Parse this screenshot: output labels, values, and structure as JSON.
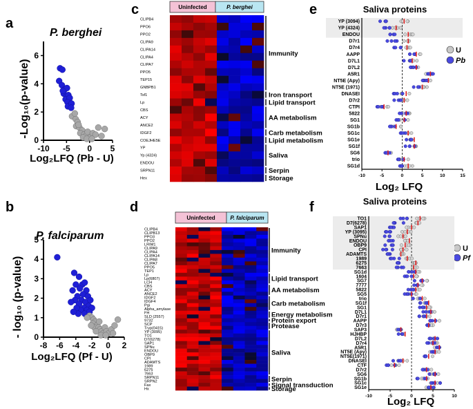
{
  "panels": {
    "a": {
      "label": "a",
      "title": "P. berghei",
      "ylabel": "-Log₁₀(p-value)",
      "xlabel": "Log₂LFQ (Pb - U)"
    },
    "b": {
      "label": "b",
      "title": "P. falciparum",
      "ylabel": "- log₁₀ (p-value)",
      "xlabel": "Log₂LFQ (Pf - U)"
    },
    "c": {
      "label": "c",
      "header_left": "Uninfected",
      "header_right": "P. berghei"
    },
    "d": {
      "label": "d",
      "header_left": "Uninfected",
      "header_right": "P. falciparum"
    },
    "e": {
      "label": "e",
      "title": "Saliva proteins",
      "xlabel": "Log₂ LFQ",
      "legend_u": "U",
      "legend_p": "Pb"
    },
    "f": {
      "label": "f",
      "title": "Saliva proteins",
      "xlabel": "Log₂ LFQ",
      "legend_u": "U",
      "legend_p": "Pf"
    }
  },
  "colors": {
    "blue_dot": "#1f1fd6",
    "gray_dot": "#a8a8a8",
    "red_marker": "#e02020",
    "heat_high": "#ff0000",
    "heat_low": "#0000ff",
    "header_pink": "#f4c2d6",
    "header_blue": "#b9e6f2",
    "highlight_bg": "#ececec"
  },
  "chart_data": [
    {
      "id": "a",
      "type": "scatter",
      "title": "P. berghei",
      "xlabel": "Log2LFQ (Pb - U)",
      "ylabel": "-Log10(p-value)",
      "xlim": [
        -10,
        5
      ],
      "ylim": [
        0,
        7
      ],
      "xticks": [
        "-10",
        "-5",
        "0",
        "5"
      ],
      "yticks": [
        "0",
        "2",
        "4",
        "6"
      ],
      "series": [
        {
          "name": "significant",
          "color": "blue",
          "points": [
            [
              -6.4,
              5.1
            ],
            [
              -5.9,
              5.0
            ],
            [
              -6.6,
              4.2
            ],
            [
              -6.0,
              3.9
            ],
            [
              -5.4,
              3.6
            ],
            [
              -4.9,
              3.7
            ],
            [
              -5.6,
              3.3
            ],
            [
              -5.0,
              3.1
            ],
            [
              -4.6,
              3.2
            ],
            [
              -5.2,
              2.9
            ],
            [
              -4.5,
              2.8
            ],
            [
              -4.3,
              3.0
            ],
            [
              -5.8,
              3.5
            ],
            [
              -4.8,
              2.7
            ],
            [
              -4.1,
              2.5
            ],
            [
              -4.7,
              2.4
            ],
            [
              -3.9,
              2.6
            ],
            [
              -4.0,
              2.3
            ]
          ]
        },
        {
          "name": "not significant",
          "color": "gray",
          "points": [
            [
              -3.8,
              1.7
            ],
            [
              -3.0,
              1.5
            ],
            [
              -2.6,
              1.3
            ],
            [
              -2.9,
              1.0
            ],
            [
              -2.2,
              0.9
            ],
            [
              -1.6,
              0.7
            ],
            [
              -2.0,
              0.5
            ],
            [
              -1.2,
              0.4
            ],
            [
              -0.8,
              0.3
            ],
            [
              -0.4,
              0.6
            ],
            [
              0.2,
              0.2
            ],
            [
              0.7,
              0.5
            ],
            [
              1.3,
              0.4
            ],
            [
              1.9,
              0.9
            ],
            [
              2.6,
              0.3
            ],
            [
              3.3,
              0.8
            ],
            [
              -1.4,
              0.2
            ],
            [
              -0.6,
              0.1
            ],
            [
              0.5,
              0.1
            ],
            [
              -2.4,
              1.1
            ],
            [
              -3.2,
              1.9
            ]
          ]
        }
      ]
    },
    {
      "id": "b",
      "type": "scatter",
      "title": "P. falciparum",
      "xlabel": "Log2LFQ (Pf - U)",
      "ylabel": "- log10 (p-value)",
      "xlim": [
        -8,
        2
      ],
      "ylim": [
        0,
        5
      ],
      "xticks": [
        "-8",
        "-6",
        "-4",
        "-2",
        "0",
        "2"
      ],
      "yticks": [
        "0",
        "1",
        "2",
        "3",
        "4",
        "5"
      ],
      "series": [
        {
          "name": "significant",
          "color": "blue",
          "points": [
            [
              -6.3,
              4.1
            ],
            [
              -4.2,
              3.3
            ],
            [
              -3.6,
              3.1
            ],
            [
              -4.0,
              2.7
            ],
            [
              -3.2,
              2.7
            ],
            [
              -2.9,
              2.8
            ],
            [
              -3.5,
              2.5
            ],
            [
              -4.4,
              2.4
            ],
            [
              -2.7,
              2.4
            ],
            [
              -3.1,
              2.2
            ],
            [
              -3.8,
              2.1
            ],
            [
              -2.5,
              2.1
            ],
            [
              -4.1,
              1.9
            ],
            [
              -3.3,
              1.9
            ],
            [
              -2.8,
              1.8
            ],
            [
              -2.2,
              1.9
            ],
            [
              -3.6,
              1.7
            ],
            [
              -4.6,
              1.8
            ],
            [
              -2.4,
              1.6
            ],
            [
              -3.0,
              1.5
            ],
            [
              -3.4,
              1.4
            ],
            [
              -2.6,
              1.4
            ],
            [
              -3.9,
              1.5
            ],
            [
              -2.0,
              1.5
            ],
            [
              -3.7,
              1.2
            ],
            [
              -2.9,
              1.2
            ],
            [
              -4.3,
              1.3
            ],
            [
              -2.3,
              1.3
            ]
          ]
        },
        {
          "name": "not significant",
          "color": "gray",
          "points": [
            [
              -2.3,
              1.1
            ],
            [
              -2.0,
              1.0
            ],
            [
              -1.8,
              0.9
            ],
            [
              -2.6,
              1.0
            ],
            [
              -1.6,
              0.8
            ],
            [
              -1.9,
              0.7
            ],
            [
              -1.4,
              0.6
            ],
            [
              -1.7,
              0.5
            ],
            [
              -1.2,
              0.5
            ],
            [
              -1.0,
              0.4
            ],
            [
              -1.5,
              0.3
            ],
            [
              -0.8,
              0.3
            ],
            [
              -0.6,
              0.2
            ],
            [
              -0.4,
              0.5
            ],
            [
              -0.2,
              0.3
            ],
            [
              0.1,
              0.2
            ],
            [
              0.4,
              0.4
            ],
            [
              0.8,
              0.6
            ],
            [
              1.2,
              0.9
            ],
            [
              -1.1,
              0.8
            ],
            [
              -0.9,
              0.1
            ],
            [
              -2.1,
              0.6
            ],
            [
              -0.3,
              0.1
            ],
            [
              0.6,
              0.2
            ]
          ]
        }
      ]
    },
    {
      "id": "c",
      "type": "heatmap",
      "columns": [
        "Uninfected",
        "Uninfected",
        "Uninfected",
        "Uninfected",
        "P. berghei",
        "P. berghei",
        "P. berghei",
        "P. berghei"
      ],
      "rows": [
        "CLIPB4",
        "PPO6",
        "PPO2",
        "CLIPA9",
        "CLIPA14",
        "CLIPA4",
        "CLIPA7",
        "PPO5",
        "TEP15",
        "GNBPB1",
        "Tsf1",
        "Lp",
        "CBS",
        "ACY",
        "ANCE2",
        "IDGF2",
        "COEJHE5E",
        "YP",
        "Yp (4324)",
        "ENDOU",
        "SRPN11",
        "Hex"
      ],
      "categories": [
        {
          "name": "Immunity",
          "first_row": 0,
          "last_row": 9
        },
        {
          "name": "Iron transport",
          "first_row": 10,
          "last_row": 10
        },
        {
          "name": "Lipid transport",
          "first_row": 11,
          "last_row": 11
        },
        {
          "name": "AA metabolism",
          "first_row": 12,
          "last_row": 14
        },
        {
          "name": "Carb metabolism",
          "first_row": 15,
          "last_row": 15
        },
        {
          "name": "Lipid metabolism",
          "first_row": 16,
          "last_row": 16
        },
        {
          "name": "Saliva",
          "first_row": 17,
          "last_row": 19
        },
        {
          "name": "Serpin",
          "first_row": 20,
          "last_row": 20
        },
        {
          "name": "Storage",
          "first_row": 21,
          "last_row": 21
        }
      ],
      "scale": "relative abundance: red = high, black = mid, blue = low"
    },
    {
      "id": "d",
      "type": "heatmap",
      "columns": [
        "Uninfected",
        "Uninfected",
        "Uninfected",
        "Uninfected",
        "P. falciparum",
        "P. falciparum",
        "P. falciparum",
        "P. falciparum"
      ],
      "rows": [
        "CLIPB4",
        "CLIPB13",
        "PPO3",
        "PPO2",
        "LRIM1",
        "CLIPA9",
        "CLIPA4",
        "CLIPA14",
        "CLIPA8",
        "CLIPA7",
        "PPO5",
        "TEP1",
        "Lp",
        "Lp(6807)",
        "LCH",
        "CBS",
        "ACY",
        "ANCE2",
        "IDGF2",
        "IDGF4",
        "Pgi",
        "Alpha_amylase",
        "FH",
        "SLD (2557)",
        "9732",
        "SCP",
        "Tryp(0415)",
        "YP (3095)",
        "TO1",
        "D7(6278)",
        "SAP1",
        "SPNu",
        "ENDOU",
        "OBP9",
        "CPI",
        "ADAMTS",
        "1989",
        "6275",
        "7663",
        "SRPN11",
        "SRPN2",
        "Fax",
        "Hx"
      ],
      "categories": [
        {
          "name": "Immunity",
          "first_row": 0,
          "last_row": 11
        },
        {
          "name": "Lipid transport",
          "first_row": 12,
          "last_row": 14
        },
        {
          "name": "AA metabolism",
          "first_row": 15,
          "last_row": 17
        },
        {
          "name": "Carb metabolism",
          "first_row": 18,
          "last_row": 21
        },
        {
          "name": "Energy metabolism",
          "first_row": 22,
          "last_row": 23
        },
        {
          "name": "Protein export",
          "first_row": 24,
          "last_row": 24
        },
        {
          "name": "Protease",
          "first_row": 25,
          "last_row": 26
        },
        {
          "name": "Saliva",
          "first_row": 27,
          "last_row": 38
        },
        {
          "name": "Serpin",
          "first_row": 39,
          "last_row": 40
        },
        {
          "name": "Signal transduction",
          "first_row": 41,
          "last_row": 41
        },
        {
          "name": "Storage",
          "first_row": 42,
          "last_row": 42
        }
      ],
      "scale": "relative abundance: red = high, black = mid, blue = low"
    },
    {
      "id": "e",
      "type": "scatter",
      "title": "Saliva proteins",
      "xlabel": "Log2 LFQ",
      "xlim": [
        -10,
        15
      ],
      "xticks": [
        "-10",
        "-5",
        "0",
        "5",
        "10",
        "15"
      ],
      "legend": [
        "U",
        "Pb"
      ],
      "highlighted_rows": 3,
      "proteins": [
        {
          "name": "YP (3094)",
          "u_mean": 0.5,
          "pb_mean": -4.5
        },
        {
          "name": "YP (4324)",
          "u_mean": -1.5,
          "pb_mean": -4.0
        },
        {
          "name": "ENDOU",
          "u_mean": 1.5,
          "pb_mean": -2.5
        },
        {
          "name": "D7r1",
          "u_mean": 1.5,
          "pb_mean": -2.5
        },
        {
          "name": "D7r4",
          "u_mean": 1.2,
          "pb_mean": -1.5
        },
        {
          "name": "AAPP",
          "u_mean": 3.5,
          "pb_mean": 2.5
        },
        {
          "name": "D7L1",
          "u_mean": 2.5,
          "pb_mean": 1.0
        },
        {
          "name": "D7L2",
          "u_mean": 3.5,
          "pb_mean": 2.5
        },
        {
          "name": "A5R1",
          "u_mean": 7.0,
          "pb_mean": 7.5
        },
        {
          "name": "NT5E (Apy)",
          "u_mean": 6.5,
          "pb_mean": 6.0
        },
        {
          "name": "NT5E (1971)",
          "u_mean": 5.0,
          "pb_mean": 4.0
        },
        {
          "name": "DNASEI",
          "u_mean": 1.0,
          "pb_mean": -1.0
        },
        {
          "name": "D7r2",
          "u_mean": 0.5,
          "pb_mean": -1.0
        },
        {
          "name": "CTPI",
          "u_mean": -4.5,
          "pb_mean": -5.5
        },
        {
          "name": "5822",
          "u_mean": 1.0,
          "pb_mean": 0.5
        },
        {
          "name": "SG1",
          "u_mean": 0.5,
          "pb_mean": -0.5
        },
        {
          "name": "SG1b",
          "u_mean": -1.5,
          "pb_mean": -2.5
        },
        {
          "name": "SG1c",
          "u_mean": 1.5,
          "pb_mean": 0.0
        },
        {
          "name": "SG1e",
          "u_mean": 3.0,
          "pb_mean": 1.5
        },
        {
          "name": "SG1f",
          "u_mean": 3.0,
          "pb_mean": 2.0
        },
        {
          "name": "SG6",
          "u_mean": -3.5,
          "pb_mean": -4.0
        },
        {
          "name": "trio",
          "u_mean": 0.5,
          "pb_mean": -0.5
        },
        {
          "name": "SG1d",
          "u_mean": 1.5,
          "pb_mean": 0.5
        }
      ]
    },
    {
      "id": "f",
      "type": "scatter",
      "title": "Saliva proteins",
      "xlabel": "Log2 LFQ",
      "xlim": [
        -10,
        10
      ],
      "xticks": [
        "-10",
        "-5",
        "0",
        "5",
        "10"
      ],
      "legend": [
        "U",
        "Pf"
      ],
      "highlighted_rows": 12,
      "proteins": [
        {
          "name": "TO1",
          "u_mean": 2.0,
          "pf_mean": -2.0
        },
        {
          "name": "D7(6278)",
          "u_mean": 1.5,
          "pf_mean": -3.0
        },
        {
          "name": "SAP1",
          "u_mean": 0.0,
          "pf_mean": -4.0
        },
        {
          "name": "YP (3095)",
          "u_mean": -1.0,
          "pf_mean": -5.0
        },
        {
          "name": "SPNu",
          "u_mean": -2.0,
          "pf_mean": -5.5
        },
        {
          "name": "ENDOU",
          "u_mean": -0.5,
          "pf_mean": -4.5
        },
        {
          "name": "OBP9",
          "u_mean": -1.5,
          "pf_mean": -5.0
        },
        {
          "name": "CPI",
          "u_mean": -2.0,
          "pf_mean": -5.5
        },
        {
          "name": "ADAMTS",
          "u_mean": -2.5,
          "pf_mean": -6.0
        },
        {
          "name": "1989",
          "u_mean": -1.0,
          "pf_mean": -4.0
        },
        {
          "name": "6275",
          "u_mean": 1.0,
          "pf_mean": -2.5
        },
        {
          "name": "7663",
          "u_mean": 0.5,
          "pf_mean": -3.0
        },
        {
          "name": "SG1d",
          "u_mean": 1.0,
          "pf_mean": 0.0
        },
        {
          "name": "1604",
          "u_mean": 0.5,
          "pf_mean": -0.5
        },
        {
          "name": "SG7",
          "u_mean": 2.5,
          "pf_mean": 1.5
        },
        {
          "name": "7777",
          "u_mean": 1.5,
          "pf_mean": 0.5
        },
        {
          "name": "5822",
          "u_mean": 1.0,
          "pf_mean": 0.0
        },
        {
          "name": "SG5",
          "u_mean": 0.0,
          "pf_mean": -1.0
        },
        {
          "name": "trio",
          "u_mean": 2.5,
          "pf_mean": 1.0
        },
        {
          "name": "SG1f",
          "u_mean": 4.0,
          "pf_mean": 3.0
        },
        {
          "name": "SG1",
          "u_mean": 3.5,
          "pf_mean": 2.5
        },
        {
          "name": "D7L1",
          "u_mean": 4.5,
          "pf_mean": 3.5
        },
        {
          "name": "D7r1",
          "u_mean": 3.5,
          "pf_mean": 2.0
        },
        {
          "name": "AAPP",
          "u_mean": 5.5,
          "pf_mean": 4.5
        },
        {
          "name": "D7r3",
          "u_mean": 4.0,
          "pf_mean": 3.0
        },
        {
          "name": "SAP3",
          "u_mean": -2.5,
          "pf_mean": -3.0
        },
        {
          "name": "HJHBP",
          "u_mean": -1.5,
          "pf_mean": -3.0
        },
        {
          "name": "D7L2",
          "u_mean": 5.5,
          "pf_mean": 5.0
        },
        {
          "name": "D7r4",
          "u_mean": 5.0,
          "pf_mean": 4.5
        },
        {
          "name": "A5R1",
          "u_mean": 6.5,
          "pf_mean": 6.5
        },
        {
          "name": "NT5E (Apy)",
          "u_mean": 5.5,
          "pf_mean": 5.5
        },
        {
          "name": "NT5E(1971)",
          "u_mean": 4.0,
          "pf_mean": 3.5
        },
        {
          "name": "DNASEI",
          "u_mean": -2.0,
          "pf_mean": -3.5
        },
        {
          "name": "CTF",
          "u_mean": -4.0,
          "pf_mean": -5.0
        },
        {
          "name": "D7r2",
          "u_mean": 3.5,
          "pf_mean": 3.0
        },
        {
          "name": "SG6",
          "u_mean": 5.5,
          "pf_mean": 5.0
        },
        {
          "name": "SG1b",
          "u_mean": 3.5,
          "pf_mean": 2.5
        },
        {
          "name": "SG1c",
          "u_mean": 5.5,
          "pf_mean": 5.5
        },
        {
          "name": "SG1e",
          "u_mean": 4.5,
          "pf_mean": 4.5
        }
      ]
    }
  ]
}
